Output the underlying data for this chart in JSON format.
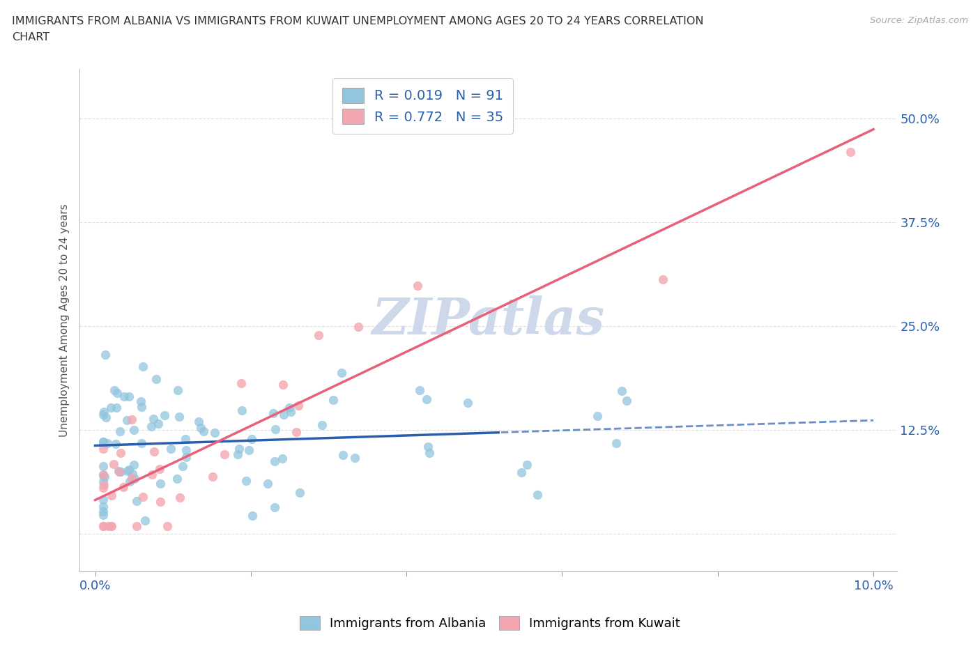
{
  "title_line1": "IMMIGRANTS FROM ALBANIA VS IMMIGRANTS FROM KUWAIT UNEMPLOYMENT AMONG AGES 20 TO 24 YEARS CORRELATION",
  "title_line2": "CHART",
  "source_text": "Source: ZipAtlas.com",
  "ylabel": "Unemployment Among Ages 20 to 24 years",
  "albania_color": "#92c5de",
  "kuwait_color": "#f4a6b0",
  "albania_R": 0.019,
  "albania_N": 91,
  "kuwait_R": 0.772,
  "kuwait_N": 35,
  "legend_r_color": "#2b5fad",
  "legend_n_color": "#e8000d",
  "trendline_albania_color": "#2b5fad",
  "trendline_kuwait_color": "#e8607a",
  "background_color": "#ffffff",
  "grid_color": "#dddddd",
  "watermark_text": "ZIPatlas",
  "watermark_color": "#cdd8ea",
  "ytick_color": "#2b5fad",
  "xtick_color": "#2b5fad",
  "ylabel_color": "#555555",
  "seed_albania": 12,
  "seed_kuwait": 77
}
